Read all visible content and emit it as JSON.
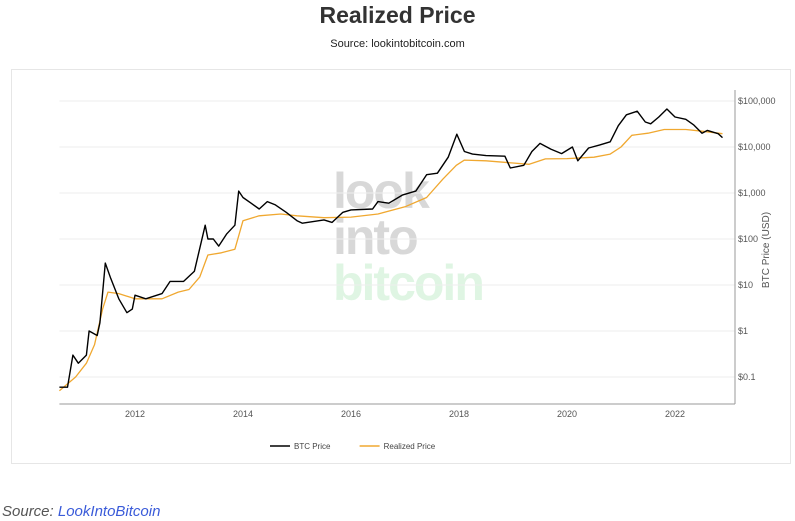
{
  "title": "Realized Price",
  "subtitle": "Source: lookintobitcoin.com",
  "footer": {
    "prefix": "Source: ",
    "link": "LookIntoBitcoin"
  },
  "watermark": [
    "look",
    "into",
    "bitcoin"
  ],
  "chart_data": {
    "type": "line",
    "ylabel": "BTC Price (USD)",
    "yscale": "log",
    "ylim": [
      0.03,
      150000
    ],
    "xlim": [
      2010.6,
      2023.1
    ],
    "yticks": [
      0.1,
      1,
      10,
      100,
      1000,
      10000,
      100000
    ],
    "ytick_labels": [
      "$0.1",
      "$1",
      "$10",
      "$100",
      "$1,000",
      "$10,000",
      "$100,000"
    ],
    "xticks": [
      2012,
      2014,
      2016,
      2018,
      2020,
      2022
    ],
    "xtick_labels": [
      "2012",
      "2014",
      "2016",
      "2018",
      "2020",
      "2022"
    ],
    "grid": true,
    "legend": "bottom",
    "series": [
      {
        "name": "BTC Price",
        "color": "#000000",
        "x": [
          2010.6,
          2010.75,
          2010.85,
          2010.95,
          2011.1,
          2011.15,
          2011.3,
          2011.35,
          2011.45,
          2011.55,
          2011.7,
          2011.85,
          2011.95,
          2012.0,
          2012.2,
          2012.5,
          2012.65,
          2012.9,
          2013.1,
          2013.3,
          2013.35,
          2013.45,
          2013.55,
          2013.7,
          2013.85,
          2013.92,
          2014.0,
          2014.15,
          2014.3,
          2014.45,
          2014.6,
          2014.8,
          2015.0,
          2015.1,
          2015.5,
          2015.65,
          2015.85,
          2016.0,
          2016.4,
          2016.5,
          2016.7,
          2016.95,
          2017.2,
          2017.4,
          2017.6,
          2017.8,
          2017.96,
          2018.1,
          2018.25,
          2018.5,
          2018.85,
          2018.95,
          2019.2,
          2019.35,
          2019.5,
          2019.7,
          2019.9,
          2020.1,
          2020.2,
          2020.4,
          2020.6,
          2020.8,
          2020.95,
          2021.1,
          2021.3,
          2021.45,
          2021.55,
          2021.7,
          2021.85,
          2022.0,
          2022.2,
          2022.35,
          2022.5,
          2022.6,
          2022.8,
          2022.88
        ],
        "values": [
          0.06,
          0.06,
          0.3,
          0.2,
          0.3,
          1,
          0.8,
          1.5,
          30,
          14,
          5,
          2.5,
          3,
          6,
          5,
          6.5,
          12,
          12,
          20,
          200,
          100,
          100,
          70,
          130,
          200,
          1100,
          800,
          600,
          450,
          650,
          550,
          380,
          250,
          220,
          260,
          230,
          380,
          430,
          450,
          650,
          600,
          900,
          1100,
          2500,
          2700,
          6000,
          19000,
          8000,
          7000,
          6500,
          6300,
          3500,
          4000,
          8000,
          12000,
          9000,
          7200,
          10000,
          5000,
          9500,
          11000,
          13000,
          29000,
          50000,
          60000,
          35000,
          32000,
          45000,
          67000,
          45000,
          40000,
          30000,
          20000,
          23000,
          19500,
          16000
        ]
      },
      {
        "name": "Realized Price",
        "color": "#f0a830",
        "x": [
          2010.6,
          2010.9,
          2011.1,
          2011.25,
          2011.4,
          2011.5,
          2011.7,
          2012.0,
          2012.5,
          2012.8,
          2013.0,
          2013.2,
          2013.35,
          2013.6,
          2013.85,
          2014.0,
          2014.3,
          2014.7,
          2015.0,
          2015.5,
          2016.0,
          2016.5,
          2017.0,
          2017.4,
          2017.7,
          2017.95,
          2018.1,
          2018.5,
          2019.0,
          2019.3,
          2019.6,
          2020.0,
          2020.5,
          2020.8,
          2021.0,
          2021.2,
          2021.5,
          2021.8,
          2022.2,
          2022.5,
          2022.88
        ],
        "values": [
          0.05,
          0.1,
          0.2,
          0.5,
          3,
          7,
          6.5,
          5,
          5,
          7,
          8,
          15,
          45,
          50,
          60,
          250,
          320,
          350,
          320,
          290,
          300,
          350,
          500,
          800,
          2000,
          4000,
          5200,
          5000,
          4500,
          4200,
          5500,
          5600,
          6000,
          7000,
          10000,
          18000,
          20000,
          24000,
          24000,
          22000,
          19500
        ]
      }
    ]
  }
}
